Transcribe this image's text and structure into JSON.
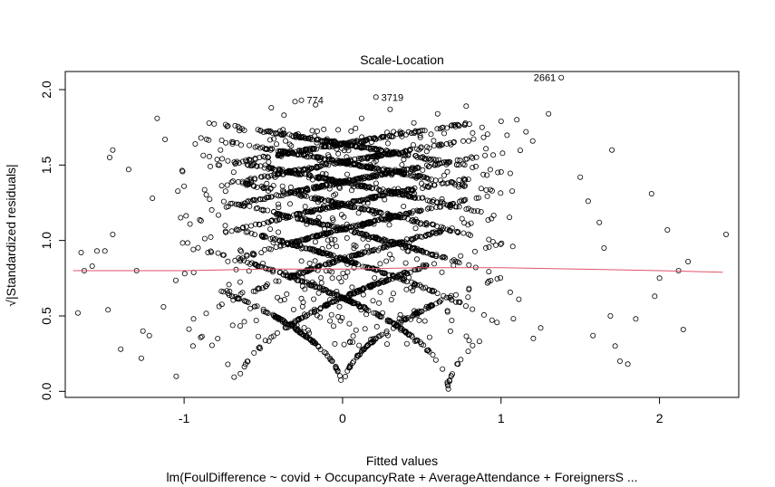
{
  "chart_data": {
    "type": "scatter",
    "title": "Scale-Location",
    "xlabel": "Fitted values",
    "ylabel": "√|Standardized residuals|",
    "subtitle": "lm(FoulDifference ~ covid + OccupancyRate + AverageAttendance + ForeignersS ...",
    "xlim": [
      -1.75,
      2.5
    ],
    "ylim": [
      -0.04,
      2.12
    ],
    "x_ticks": [
      -1,
      0,
      1,
      2
    ],
    "y_ticks": [
      0.0,
      0.5,
      1.0,
      1.5,
      2.0
    ],
    "x_tick_labels": [
      "-1",
      "0",
      "1",
      "2"
    ],
    "y_tick_labels": [
      "0.0",
      "0.5",
      "1.0",
      "1.5",
      "2.0"
    ],
    "grid": false,
    "point_style": "open-circle",
    "point_color": "#000000",
    "smoother_color": "#DF536B",
    "smoother": {
      "x": [
        -1.7,
        -1.0,
        -0.5,
        0.0,
        0.5,
        1.0,
        1.5,
        2.0,
        2.4
      ],
      "y": [
        0.8,
        0.8,
        0.81,
        0.81,
        0.82,
        0.82,
        0.81,
        0.8,
        0.79
      ]
    },
    "residual_levels": [
      1,
      2,
      3,
      4,
      5,
      6,
      7
    ],
    "residual_scale": 1.5,
    "labeled_points": [
      {
        "label": "774",
        "x": -0.26,
        "y": 1.93
      },
      {
        "label": "3719",
        "x": 0.21,
        "y": 1.95
      },
      {
        "label": "2661",
        "x": 1.38,
        "y": 2.08
      }
    ],
    "outliers": [
      [
        -1.67,
        0.52
      ],
      [
        -1.65,
        0.92
      ],
      [
        -1.55,
        0.93
      ],
      [
        -1.5,
        0.93
      ],
      [
        -1.45,
        1.04
      ],
      [
        -1.48,
        0.54
      ],
      [
        -1.47,
        1.55
      ],
      [
        -1.45,
        1.6
      ],
      [
        -1.4,
        0.28
      ],
      [
        -1.35,
        1.47
      ],
      [
        -1.3,
        0.8
      ],
      [
        -1.27,
        0.22
      ],
      [
        -1.26,
        0.4
      ],
      [
        -1.2,
        1.28
      ],
      [
        -1.17,
        1.81
      ],
      [
        -1.12,
        1.67
      ],
      [
        -1.05,
        0.1
      ],
      [
        -1.0,
        1.36
      ],
      [
        -0.93,
        1.64
      ],
      [
        -0.77,
        1.6
      ],
      [
        -0.62,
        1.73
      ],
      [
        -0.45,
        1.88
      ],
      [
        -0.37,
        1.83
      ],
      [
        -0.3,
        1.92
      ],
      [
        -0.17,
        1.9
      ],
      [
        0.12,
        1.81
      ],
      [
        0.3,
        1.87
      ],
      [
        0.45,
        1.78
      ],
      [
        0.6,
        1.84
      ],
      [
        0.78,
        1.89
      ],
      [
        0.88,
        1.75
      ],
      [
        1.0,
        1.79
      ],
      [
        1.1,
        1.8
      ],
      [
        1.2,
        1.66
      ],
      [
        1.3,
        1.84
      ],
      [
        1.5,
        1.42
      ],
      [
        1.55,
        1.26
      ],
      [
        1.62,
        1.12
      ],
      [
        1.7,
        1.6
      ],
      [
        1.72,
        0.3
      ],
      [
        1.75,
        0.2
      ],
      [
        1.85,
        0.48
      ],
      [
        1.95,
        1.31
      ],
      [
        1.97,
        0.63
      ],
      [
        2.0,
        0.75
      ],
      [
        2.05,
        1.07
      ],
      [
        2.12,
        0.8
      ],
      [
        2.15,
        0.41
      ],
      [
        2.18,
        0.86
      ],
      [
        2.42,
        1.04
      ],
      [
        1.8,
        0.18
      ],
      [
        1.69,
        0.5
      ],
      [
        1.58,
        0.37
      ],
      [
        1.65,
        0.95
      ],
      [
        -1.58,
        0.83
      ],
      [
        -1.63,
        0.8
      ],
      [
        -1.22,
        0.37
      ],
      [
        -1.13,
        0.56
      ],
      [
        1.25,
        0.42
      ],
      [
        -0.05,
        1.66
      ]
    ]
  }
}
